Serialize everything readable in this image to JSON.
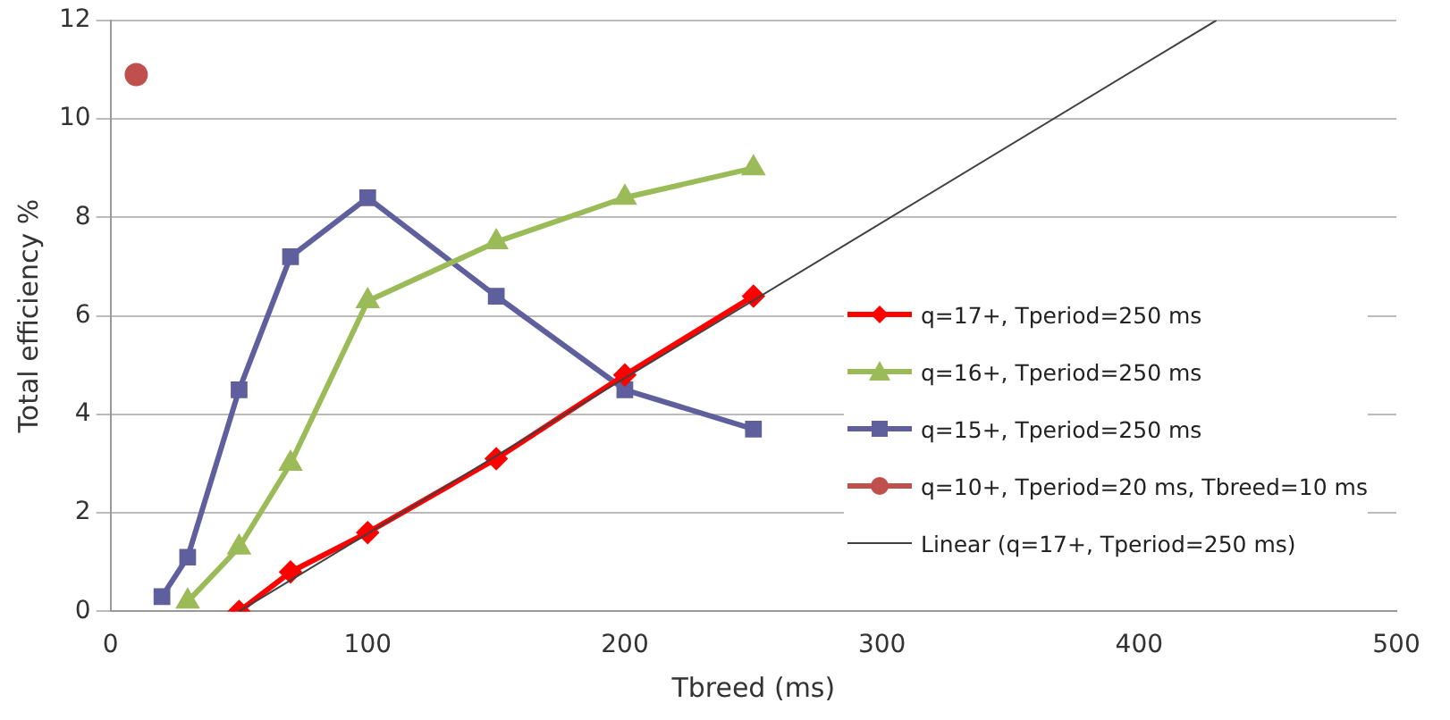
{
  "chart_data": {
    "type": "line",
    "xlabel": "Tbreed (ms)",
    "ylabel": "Total efficiency %",
    "xlim": [
      0,
      500
    ],
    "xticks": [
      0,
      100,
      200,
      300,
      400,
      500
    ],
    "ylim": [
      0,
      12
    ],
    "yticks": [
      0,
      2,
      4,
      6,
      8,
      10,
      12
    ],
    "grid": "y",
    "legend": "right",
    "series": [
      {
        "name": "q=17+, Tperiod=250 ms",
        "color": "#ff0000",
        "marker": "diamond",
        "x": [
          50,
          70,
          100,
          150,
          200,
          250
        ],
        "values": [
          0,
          0.8,
          1.6,
          3.1,
          4.8,
          6.4
        ]
      },
      {
        "name": "q=16+, Tperiod=250 ms",
        "color": "#9bbb59",
        "marker": "triangle",
        "x": [
          30,
          50,
          70,
          100,
          150,
          200,
          250
        ],
        "values": [
          0.2,
          1.3,
          3.0,
          6.3,
          7.5,
          8.4,
          9.0
        ]
      },
      {
        "name": "q=15+, Tperiod=250 ms",
        "color": "#5f5f9e",
        "marker": "square",
        "x": [
          20,
          30,
          50,
          70,
          100,
          150,
          200,
          250
        ],
        "values": [
          0.3,
          1.1,
          4.5,
          7.2,
          8.4,
          6.4,
          4.5,
          3.7
        ]
      },
      {
        "name": "q=10+, Tperiod=20 ms, Tbreed=10 ms",
        "color": "#c0504d",
        "type": "scatter",
        "marker": "circle",
        "x": [
          10
        ],
        "values": [
          10.9
        ]
      },
      {
        "name": "Linear (q=17+, Tperiod=250 ms)",
        "color": "#404040",
        "marker": "none",
        "x": [
          50,
          430
        ],
        "values": [
          0,
          12
        ]
      }
    ]
  }
}
